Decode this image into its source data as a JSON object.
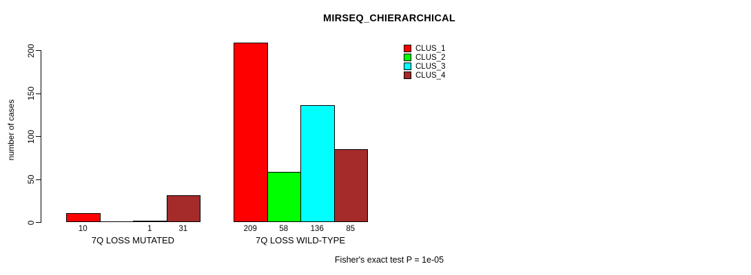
{
  "title": "MIRSEQ_CHIERARCHICAL",
  "footer": "Fisher's exact test P = 1e-05",
  "y_axis_title": "number of cases",
  "chart_data": {
    "type": "bar",
    "title": "MIRSEQ_CHIERARCHICAL",
    "xlabel": "",
    "ylabel": "number of cases",
    "ylim": [
      0,
      209
    ],
    "yticks": [
      0,
      50,
      100,
      150,
      200
    ],
    "grid": false,
    "legend_position": "inside-top-right",
    "series": [
      {
        "name": "CLUS_1",
        "color": "#FF0000"
      },
      {
        "name": "CLUS_2",
        "color": "#00FF00"
      },
      {
        "name": "CLUS_3",
        "color": "#00FFFF"
      },
      {
        "name": "CLUS_4",
        "color": "#A52A2A"
      }
    ],
    "groups": [
      {
        "category": "7Q LOSS MUTATED",
        "values": [
          10,
          0,
          1,
          31
        ],
        "value_labels": [
          "10",
          "",
          "1",
          "31"
        ]
      },
      {
        "category": "7Q LOSS WILD-TYPE",
        "values": [
          209,
          58,
          136,
          85
        ],
        "value_labels": [
          "209",
          "58",
          "136",
          "85"
        ]
      }
    ],
    "annotation": "Fisher's exact test P = 1e-05"
  }
}
